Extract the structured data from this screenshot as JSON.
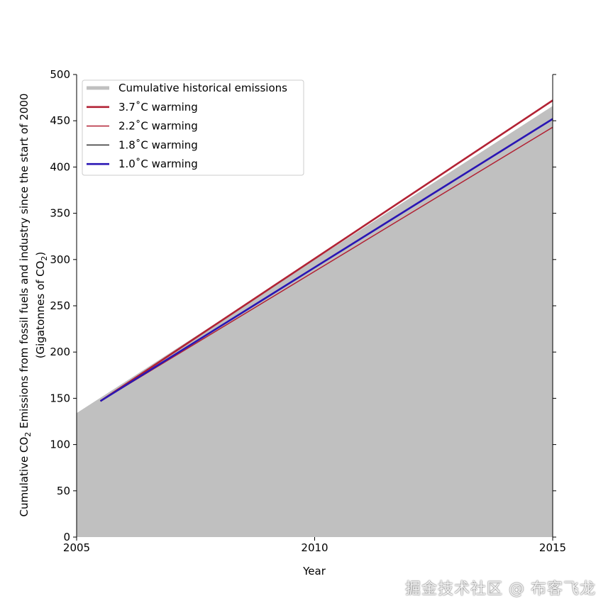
{
  "chart_data": {
    "type": "area",
    "xlabel": "Year",
    "ylabel_line1_pre": "Cumulative CO",
    "ylabel_line1_sub": "2",
    "ylabel_line1_post": " Emissions from fossil fuels and industry since the start of 2000",
    "ylabel_line2_pre": "(Gigatonnes of CO",
    "ylabel_line2_sub": "2",
    "ylabel_line2_post": ")",
    "xlim": [
      2005,
      2015
    ],
    "ylim": [
      0,
      500
    ],
    "x_ticks": [
      "2005",
      "2010",
      "2015"
    ],
    "y_ticks": [
      "0",
      "50",
      "100",
      "150",
      "200",
      "250",
      "300",
      "350",
      "400",
      "450",
      "500"
    ],
    "grid": false,
    "legend_position": "top-left",
    "series": [
      {
        "name": "Cumulative historical emissions",
        "kind": "area",
        "color": "#c0c0c0",
        "x": [
          2005,
          2015
        ],
        "y": [
          134,
          466
        ]
      },
      {
        "name": "3.7˚C warming",
        "kind": "line",
        "color": "#b22234",
        "width": 2.6,
        "x": [
          2005.5,
          2015
        ],
        "y": [
          147,
          472
        ]
      },
      {
        "name": "2.2˚C warming",
        "kind": "line",
        "color": "#b22234",
        "width": 1.5,
        "x": [
          2005.5,
          2015
        ],
        "y": [
          147,
          443
        ]
      },
      {
        "name": "1.8˚C warming",
        "kind": "line",
        "color": "#333333",
        "width": 1.5,
        "x": [
          2005.5,
          2015
        ],
        "y": [
          147,
          452
        ]
      },
      {
        "name": "1.0˚C warming",
        "kind": "line",
        "color": "#2a16b4",
        "width": 2.6,
        "x": [
          2005.5,
          2015
        ],
        "y": [
          147,
          452
        ]
      }
    ]
  },
  "watermark": "掘金技术社区 @ 布客飞龙"
}
